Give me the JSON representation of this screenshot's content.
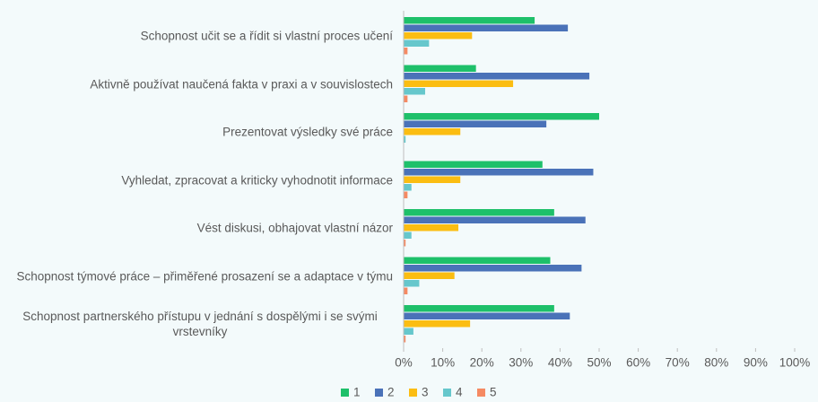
{
  "chart_data": {
    "type": "hbar",
    "categories": [
      "Schopnost učit se a řídit si vlastní proces učení",
      "Aktivně používat naučená fakta v praxi a v souvislostech",
      "Prezentovat výsledky své práce",
      "Vyhledat, zpracovat a kriticky vyhodnotit informace",
      "Vést diskusi, obhajovat vlastní názor",
      "Schopnost týmové práce – přiměřené prosazení se a adaptace v týmu",
      "Schopnost partnerského přístupu v jednání s dospělými i se svými vrstevníky"
    ],
    "series": [
      {
        "name": "1",
        "color": "#1ec06a",
        "values": [
          33.5,
          18.5,
          50,
          35.5,
          38.5,
          37.5,
          38.5
        ]
      },
      {
        "name": "2",
        "color": "#4a72b8",
        "values": [
          42,
          47.5,
          36.5,
          48.5,
          46.5,
          45.5,
          42.5
        ]
      },
      {
        "name": "3",
        "color": "#fbbd12",
        "values": [
          17.5,
          28,
          14.5,
          14.5,
          14,
          13,
          17
        ]
      },
      {
        "name": "4",
        "color": "#66c7cc",
        "values": [
          6.5,
          5.5,
          0.5,
          2,
          2,
          4,
          2.5
        ]
      },
      {
        "name": "5",
        "color": "#f58a63",
        "values": [
          1,
          1,
          0,
          1,
          0.5,
          1,
          0.5
        ]
      }
    ],
    "xlim": [
      0,
      100
    ],
    "xticks": [
      {
        "value": 0,
        "label": "0%"
      },
      {
        "value": 10,
        "label": "10%"
      },
      {
        "value": 20,
        "label": "20%"
      },
      {
        "value": 30,
        "label": "30%"
      },
      {
        "value": 40,
        "label": "40%"
      },
      {
        "value": 50,
        "label": "50%"
      },
      {
        "value": 60,
        "label": "60%"
      },
      {
        "value": 70,
        "label": "70%"
      },
      {
        "value": 80,
        "label": "80%"
      },
      {
        "value": 90,
        "label": "90%"
      },
      {
        "value": 100,
        "label": "100%"
      }
    ],
    "legend": "bottom"
  }
}
